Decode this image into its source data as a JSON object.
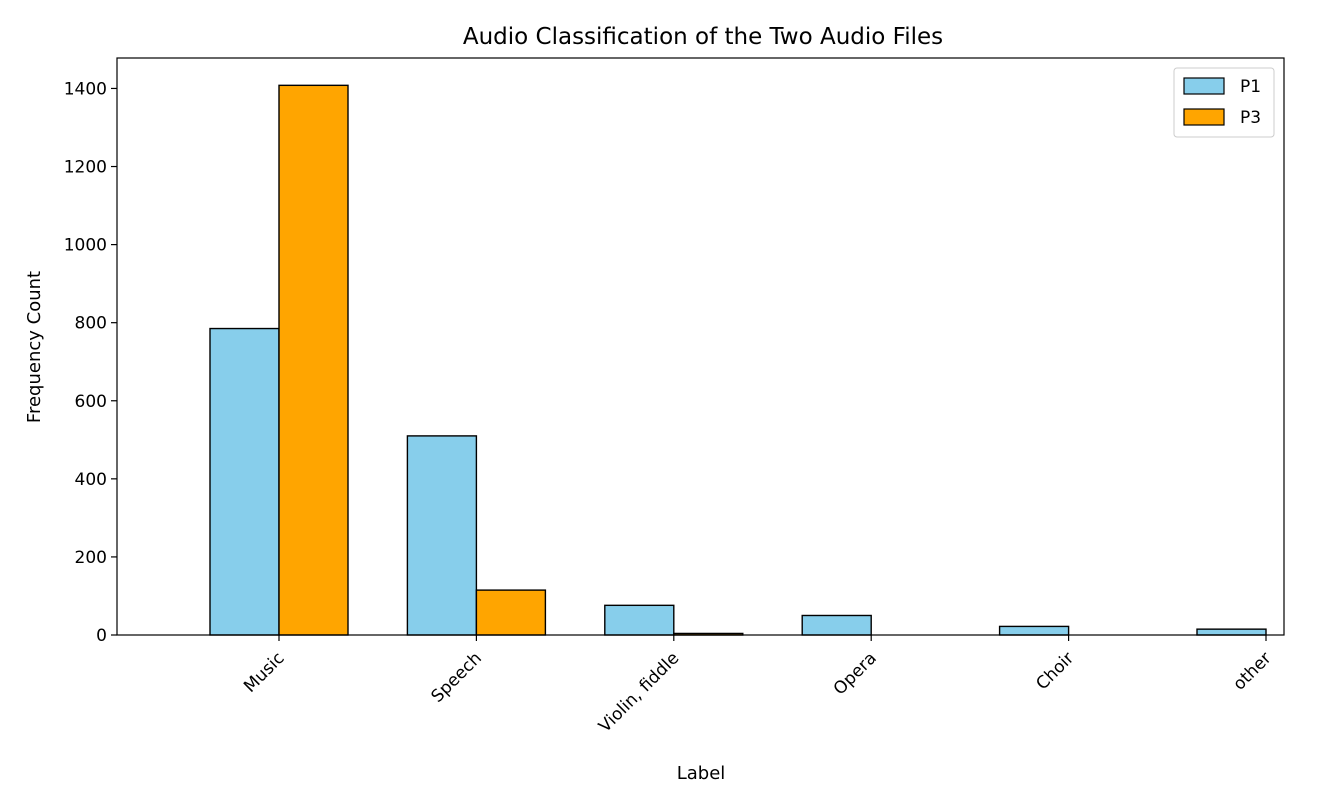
{
  "chart_data": {
    "type": "bar",
    "title": "Audio Classification of the Two Audio Files",
    "xlabel": "Label",
    "ylabel": "Frequency Count",
    "categories": [
      "Music",
      "Speech",
      "Violin, fiddle",
      "Opera",
      "Choir",
      "other"
    ],
    "series": [
      {
        "name": "P1",
        "values": [
          785,
          510,
          76,
          50,
          22,
          15
        ],
        "color": "#87ceeb"
      },
      {
        "name": "P3",
        "values": [
          1408,
          115,
          4,
          0,
          0,
          0
        ],
        "color": "#ffa500"
      }
    ],
    "ylim": [
      0,
      1478
    ],
    "yticks": [
      0,
      200,
      400,
      600,
      800,
      1000,
      1200,
      1400
    ],
    "legend_position": "top-right",
    "grid": false,
    "bar_edge_color": "#000000"
  }
}
